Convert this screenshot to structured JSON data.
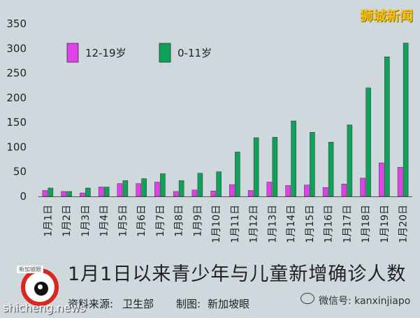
{
  "watermark": "狮城新闻",
  "caption": "1月1日以来青少年与儿童新增确诊人数",
  "source_label": "资料来源:",
  "source_value": "卫生部",
  "credit_label": "制图:",
  "credit_value": "新加坡眼",
  "logo_text": "新加坡眼",
  "site_text": "shicheng.news",
  "wechat_text": "微信号: kanxinjiapo",
  "colors": {
    "series1": "#e040e8",
    "series2": "#0fa05a",
    "background": "#cfd8dd"
  },
  "chart_data": {
    "type": "bar",
    "title": "",
    "xlabel": "",
    "ylabel": "",
    "ylim": [
      0,
      350
    ],
    "yticks": [
      0,
      50,
      100,
      150,
      200,
      250,
      300,
      350
    ],
    "legend_position": "top-left",
    "grid": false,
    "categories": [
      "1月1日",
      "1月2日",
      "1月3日",
      "1月4日",
      "1月5日",
      "1月6日",
      "1月7日",
      "1月8日",
      "1月9日",
      "1月10日",
      "1月11日",
      "1月12日",
      "1月13日",
      "1月14日",
      "1月15日",
      "1月16日",
      "1月17日",
      "1月18日",
      "1月19日",
      "1月20日"
    ],
    "series": [
      {
        "name": "12-19岁",
        "color": "#e040e8",
        "values": [
          12,
          10,
          7,
          19,
          26,
          26,
          29,
          10,
          13,
          11,
          24,
          12,
          29,
          22,
          23,
          18,
          25,
          37,
          68,
          59
        ]
      },
      {
        "name": "0-11岁",
        "color": "#0fa05a",
        "values": [
          17,
          10,
          17,
          19,
          32,
          36,
          46,
          32,
          47,
          50,
          90,
          119,
          120,
          153,
          130,
          110,
          145,
          220,
          283,
          311
        ]
      }
    ]
  }
}
